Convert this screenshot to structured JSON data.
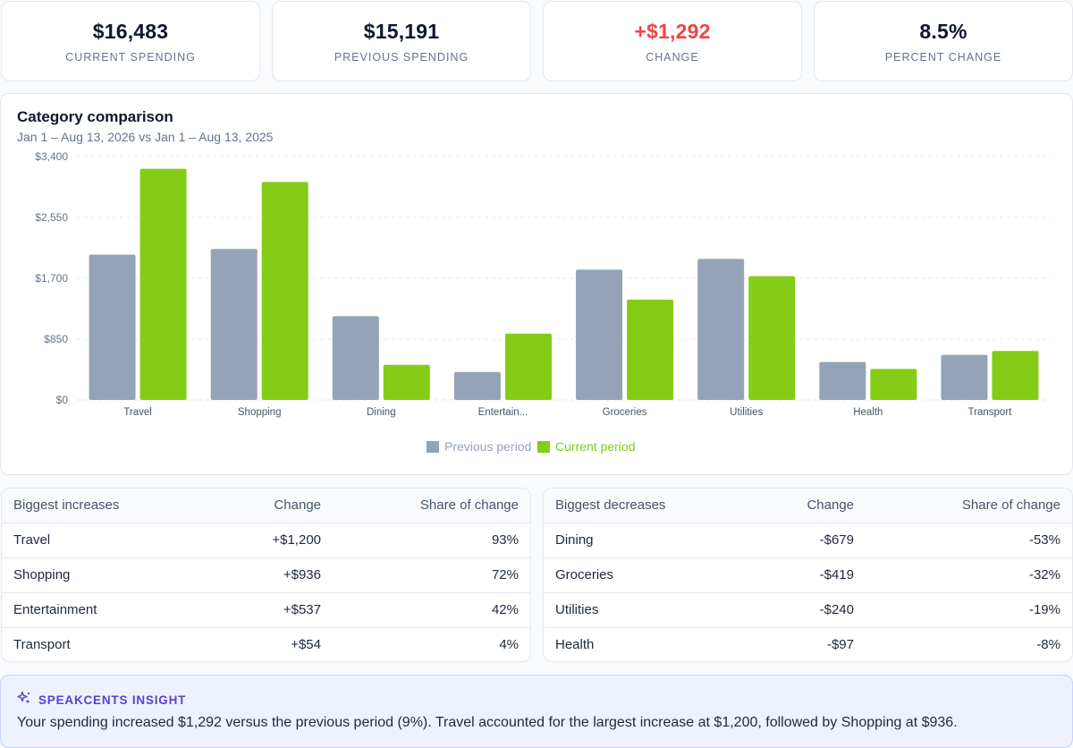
{
  "kpis": [
    {
      "value": "$16,483",
      "label": "CURRENT SPENDING"
    },
    {
      "value": "$15,191",
      "label": "PREVIOUS SPENDING"
    },
    {
      "value": "+$1,292",
      "label": "CHANGE"
    },
    {
      "value": "8.5%",
      "label": "PERCENT CHANGE"
    }
  ],
  "chart_card": {
    "title": "Category comparison",
    "subtitle": "Jan 1 – Aug 13, 2026 vs Jan 1 – Aug 13, 2025"
  },
  "chart_data": {
    "type": "bar",
    "title": "Category comparison",
    "categories": [
      "Travel",
      "Shopping",
      "Dining",
      "Entertain...",
      "Groceries",
      "Utilities",
      "Health",
      "Transport"
    ],
    "series": [
      {
        "name": "Previous period",
        "color": "#94a3b8",
        "values": [
          2030,
          2110,
          1170,
          390,
          1820,
          1970,
          530,
          630
        ]
      },
      {
        "name": "Current period",
        "color": "#84cc16",
        "values": [
          3230,
          3046,
          491,
          927,
          1401,
          1730,
          433,
          684
        ]
      }
    ],
    "ylim": [
      0,
      3400
    ],
    "yticks": [
      "$0",
      "$850",
      "$1,700",
      "$2,550",
      "$3,400"
    ],
    "ytick_values": [
      0,
      850,
      1700,
      2550,
      3400
    ],
    "grid": true,
    "legend": "bottom-center"
  },
  "increases": {
    "headers": [
      "Biggest increases",
      "Change",
      "Share of change"
    ],
    "rows": [
      [
        "Travel",
        "+$1,200",
        "93%"
      ],
      [
        "Shopping",
        "+$936",
        "72%"
      ],
      [
        "Entertainment",
        "+$537",
        "42%"
      ],
      [
        "Transport",
        "+$54",
        "4%"
      ]
    ]
  },
  "decreases": {
    "headers": [
      "Biggest decreases",
      "Change",
      "Share of change"
    ],
    "rows": [
      [
        "Dining",
        "-$679",
        "-53%"
      ],
      [
        "Groceries",
        "-$419",
        "-32%"
      ],
      [
        "Utilities",
        "-$240",
        "-19%"
      ],
      [
        "Health",
        "-$97",
        "-8%"
      ]
    ]
  },
  "insight": {
    "icon": "sparkle-icon",
    "title": "SPEAKCENTS INSIGHT",
    "text": "Your spending increased $1,292 versus the previous period (9%). Travel accounted for the largest increase at $1,200, followed by Shopping at $936."
  }
}
